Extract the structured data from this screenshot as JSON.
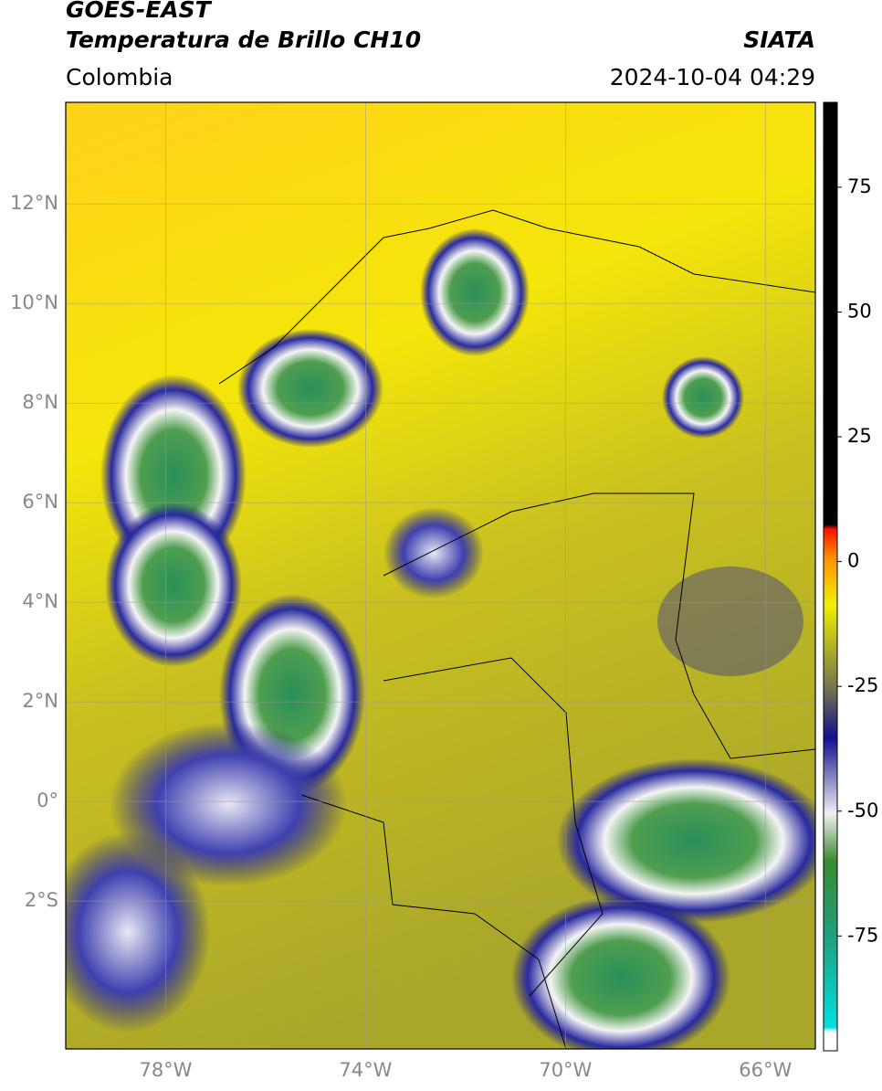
{
  "chart_data": {
    "type": "map",
    "title_lines": [
      "GOES-EAST",
      "Temperatura de Brillo CH10"
    ],
    "source": "SIATA",
    "region": "Colombia",
    "timestamp": "2024-10-04 04:29",
    "xlim": [
      -80,
      -65
    ],
    "ylim": [
      -4.97,
      14.04
    ],
    "xticks": [
      {
        "value": -78,
        "label": "78°W"
      },
      {
        "value": -74,
        "label": "74°W"
      },
      {
        "value": -70,
        "label": "70°W"
      },
      {
        "value": -66,
        "label": "66°W"
      }
    ],
    "yticks": [
      {
        "value": 12,
        "label": "12°N"
      },
      {
        "value": 10,
        "label": "10°N"
      },
      {
        "value": 8,
        "label": "8°N"
      },
      {
        "value": 6,
        "label": "6°N"
      },
      {
        "value": 4,
        "label": "4°N"
      },
      {
        "value": 2,
        "label": "2°N"
      },
      {
        "value": 0,
        "label": "0°"
      },
      {
        "value": -2,
        "label": "2°S"
      }
    ],
    "grid": true,
    "colorbar": {
      "lim": [
        -98,
        92
      ],
      "ticks": [
        75,
        50,
        25,
        0,
        -25,
        -50,
        -75
      ]
    }
  }
}
